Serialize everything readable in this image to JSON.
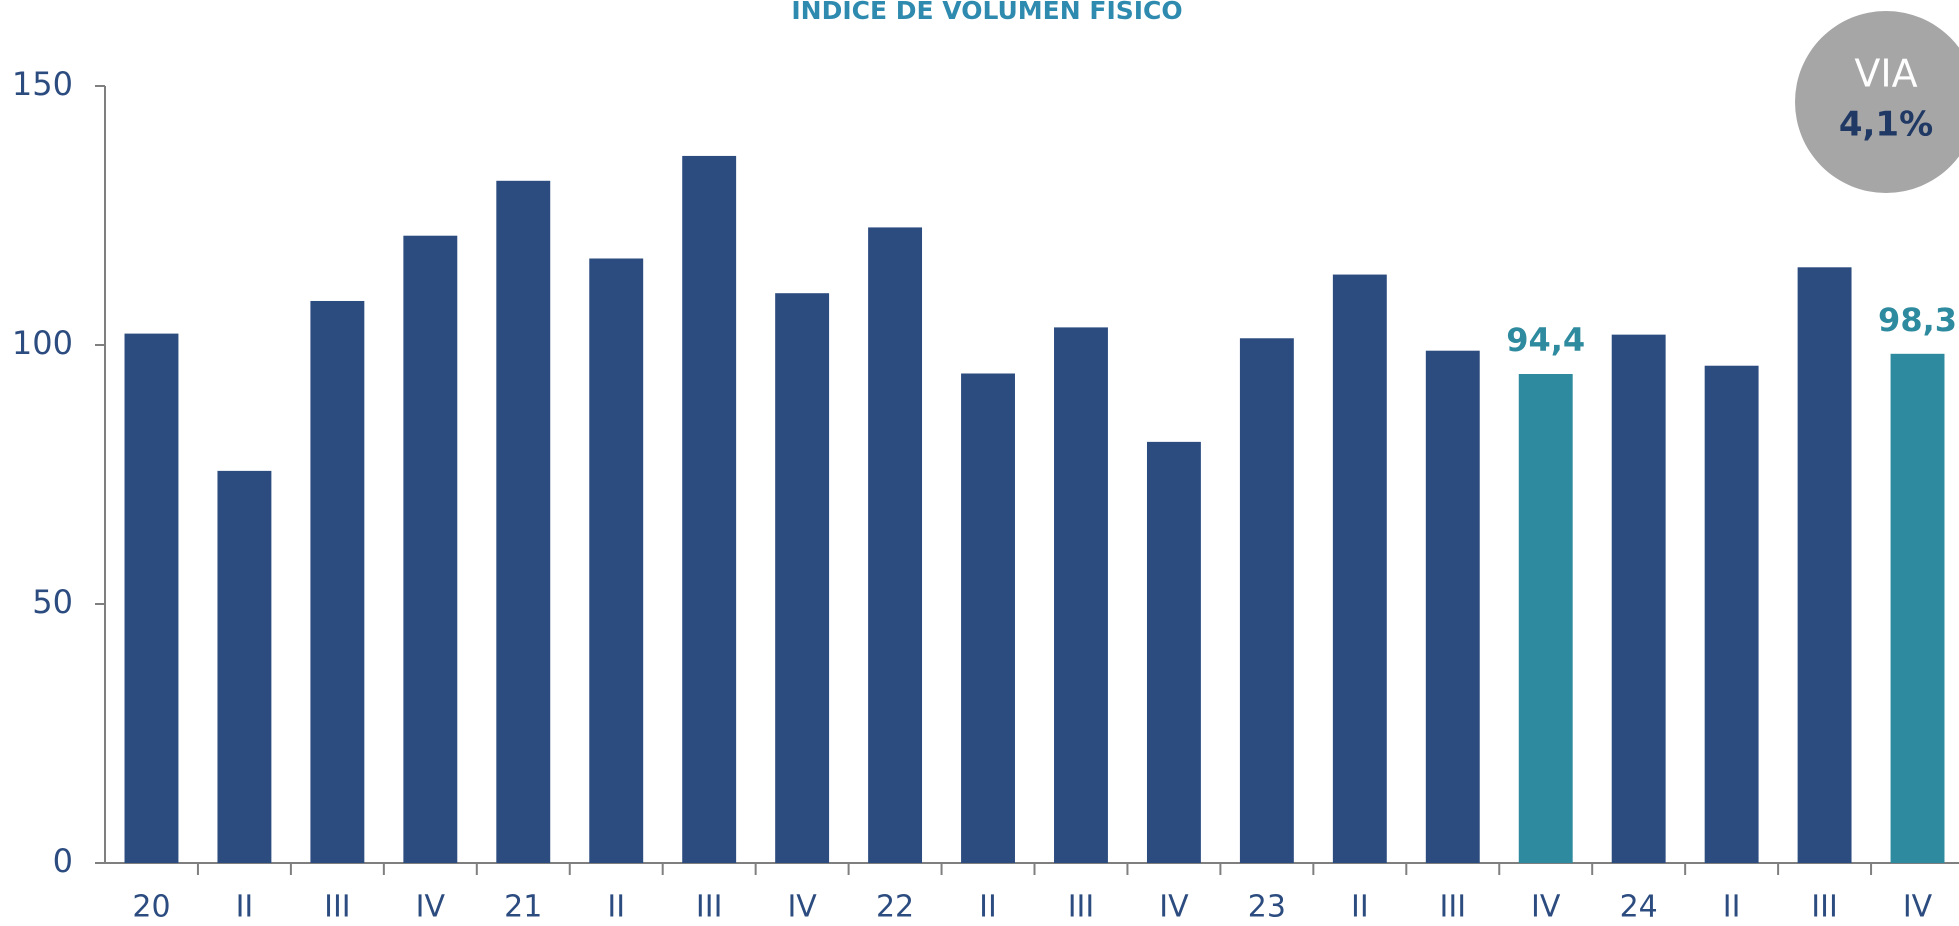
{
  "chart_data": {
    "type": "bar",
    "title": "ÍNDICE DE VOLUMEN FÍSICO",
    "categories": [
      "20",
      "II",
      "III",
      "IV",
      "21",
      "II",
      "III",
      "IV",
      "22",
      "II",
      "III",
      "IV",
      "23",
      "II",
      "III",
      "IV",
      "24",
      "II",
      "III",
      "IV"
    ],
    "values": [
      102.2,
      75.7,
      108.5,
      121.1,
      131.7,
      116.7,
      136.5,
      110.0,
      122.7,
      94.5,
      103.4,
      81.3,
      101.3,
      113.6,
      98.9,
      94.4,
      102.0,
      96.0,
      115.0,
      98.3
    ],
    "value_labels": [
      null,
      null,
      null,
      null,
      null,
      null,
      null,
      null,
      null,
      null,
      null,
      null,
      null,
      null,
      null,
      "94,4",
      null,
      null,
      null,
      "98,3"
    ],
    "colors": [
      "#2c4c80",
      "#2c4c80",
      "#2c4c80",
      "#2c4c80",
      "#2c4c80",
      "#2c4c80",
      "#2c4c80",
      "#2c4c80",
      "#2c4c80",
      "#2c4c80",
      "#2c4c80",
      "#2c4c80",
      "#2c4c80",
      "#2c4c80",
      "#2c4c80",
      "#2e8a9e",
      "#2c4c80",
      "#2c4c80",
      "#2c4c80",
      "#2e8a9e"
    ],
    "ylim": [
      0,
      150
    ],
    "yticks": [
      0,
      50,
      100,
      150
    ],
    "grid": false,
    "badge": {
      "label": "VIA",
      "value": "4,1%"
    }
  }
}
